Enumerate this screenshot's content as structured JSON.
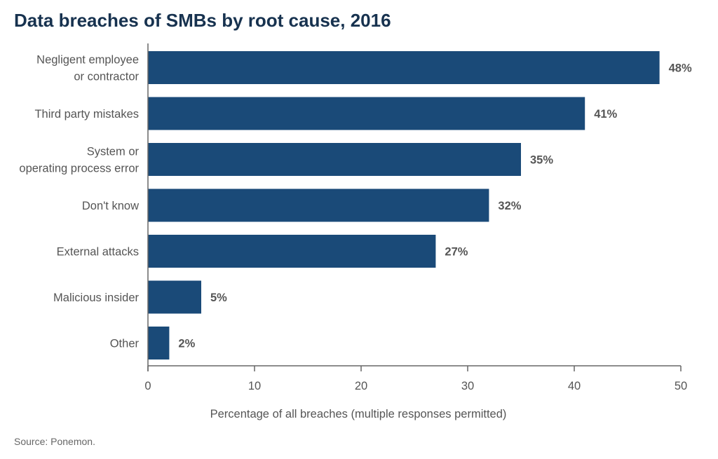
{
  "chart_data": {
    "type": "bar",
    "orientation": "horizontal",
    "title": "Data breaches of SMBs by root cause, 2016",
    "categories": [
      [
        "Negligent employee",
        "or contractor"
      ],
      [
        "Third party mistakes"
      ],
      [
        "System or",
        "operating process error"
      ],
      [
        "Don't know"
      ],
      [
        "External attacks"
      ],
      [
        "Malicious insider"
      ],
      [
        "Other"
      ]
    ],
    "values": [
      48,
      41,
      35,
      32,
      27,
      5,
      2
    ],
    "value_labels": [
      "48%",
      "41%",
      "35%",
      "32%",
      "27%",
      "5%",
      "2%"
    ],
    "xlabel": "Percentage of all breaches (multiple responses permitted)",
    "ylabel": "",
    "xlim": [
      0,
      50
    ],
    "xticks": [
      0,
      10,
      20,
      30,
      40,
      50
    ],
    "grid": false,
    "bar_color": "#1a4a78",
    "source": "Source: Ponemon."
  }
}
